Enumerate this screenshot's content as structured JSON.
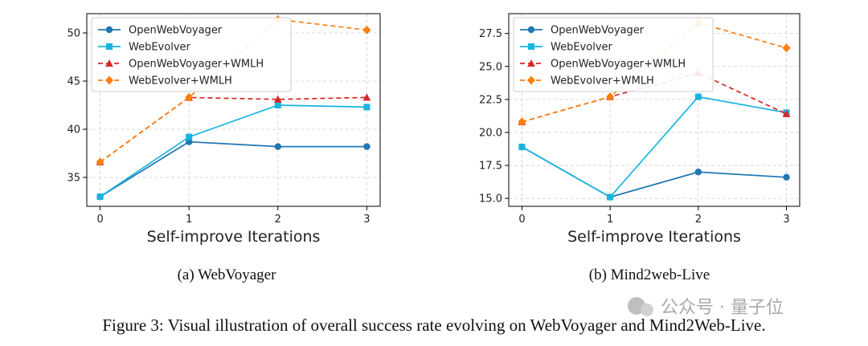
{
  "chart_data": [
    {
      "type": "line",
      "xlabel": "Self-improve Iterations",
      "ylabel": "",
      "x": [
        0,
        1,
        2,
        3
      ],
      "xlim": [
        -0.15,
        3.15
      ],
      "ylim": [
        32,
        52
      ],
      "yticks": [
        35,
        40,
        45,
        50
      ],
      "ytick_labels": [
        "35",
        "40",
        "45",
        "50"
      ],
      "grid": true,
      "legend_position": "upper-left",
      "series": [
        {
          "name": "OpenWebVoyager",
          "values": [
            33.0,
            38.7,
            38.2,
            38.2
          ],
          "color": "#1f77b4",
          "marker": "circle",
          "dashed": false
        },
        {
          "name": "WebEvolver",
          "values": [
            33.0,
            39.2,
            42.5,
            42.3
          ],
          "color": "#17b4e0",
          "marker": "square",
          "dashed": false
        },
        {
          "name": "OpenWebVoyager+WMLH",
          "values": [
            36.6,
            43.3,
            43.1,
            43.3
          ],
          "color": "#d62728",
          "marker": "triangle",
          "dashed": true
        },
        {
          "name": "WebEvolver+WMLH",
          "values": [
            36.6,
            43.3,
            51.4,
            50.3
          ],
          "color": "#ff7f0e",
          "marker": "diamond",
          "dashed": true
        }
      ],
      "caption": "(a)  WebVoyager"
    },
    {
      "type": "line",
      "xlabel": "Self-improve Iterations",
      "ylabel": "",
      "x": [
        0,
        1,
        2,
        3
      ],
      "xlim": [
        -0.15,
        3.15
      ],
      "ylim": [
        14.4,
        29.0
      ],
      "yticks": [
        15.0,
        17.5,
        20.0,
        22.5,
        25.0,
        27.5
      ],
      "ytick_labels": [
        "15.0",
        "17.5",
        "20.0",
        "22.5",
        "25.0",
        "27.5"
      ],
      "grid": true,
      "legend_position": "upper-left",
      "series": [
        {
          "name": "OpenWebVoyager",
          "values": [
            18.9,
            15.1,
            17.0,
            16.6
          ],
          "color": "#1f77b4",
          "marker": "circle",
          "dashed": false
        },
        {
          "name": "WebEvolver",
          "values": [
            18.9,
            15.1,
            22.7,
            21.5
          ],
          "color": "#17b4e0",
          "marker": "square",
          "dashed": false
        },
        {
          "name": "OpenWebVoyager+WMLH",
          "values": [
            20.8,
            22.7,
            24.5,
            21.4
          ],
          "color": "#d62728",
          "marker": "triangle",
          "dashed": true
        },
        {
          "name": "WebEvolver+WMLH",
          "values": [
            20.8,
            22.7,
            28.3,
            26.4
          ],
          "color": "#ff7f0e",
          "marker": "diamond",
          "dashed": true
        }
      ],
      "caption": "(b)  Mind2web-Live"
    }
  ],
  "figure_caption": "Figure 3: Visual illustration of overall success rate evolving on WebVoyager and Mind2Web-Live.",
  "watermark": "公众号 · 量子位"
}
